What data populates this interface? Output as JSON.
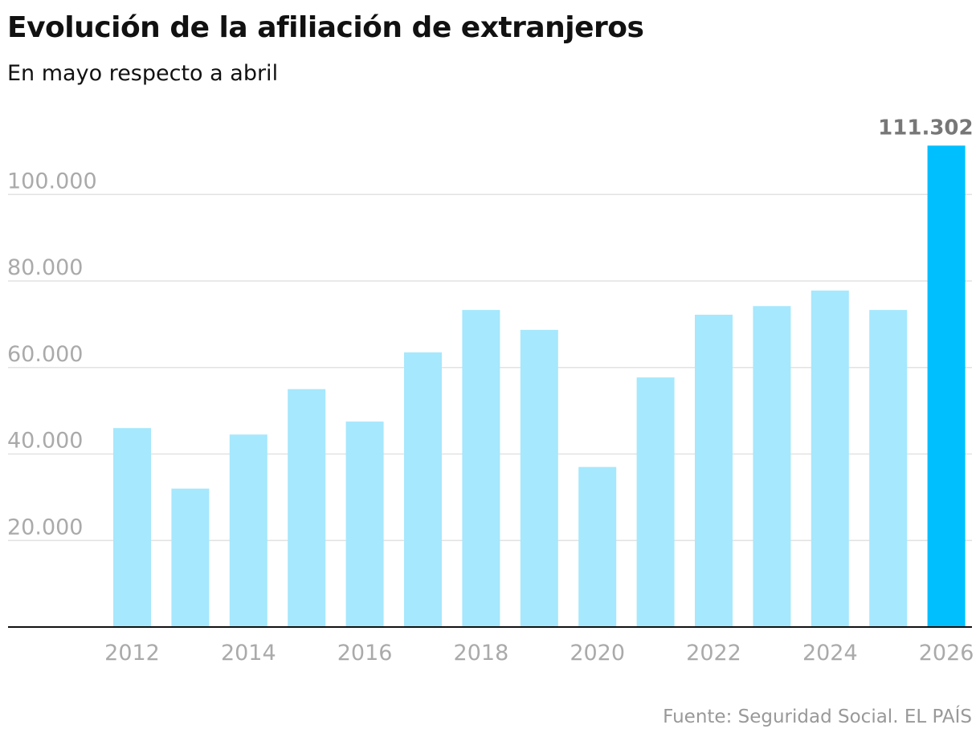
{
  "title": "Evolución de la afiliación de extranjeros",
  "subtitle": "En mayo respecto a abril",
  "source": "Fuente: Seguridad Social. EL PAÍS",
  "colors": {
    "bar": "#a6e8fd",
    "highlight": "#00bfff",
    "grid": "#e2e2e2",
    "axis": "#111111",
    "tick_text": "#aaaaaa",
    "highlight_label": "#777777"
  },
  "chart_data": {
    "type": "bar",
    "categories": [
      "2012",
      "2013",
      "2014",
      "2015",
      "2016",
      "2017",
      "2018",
      "2019",
      "2020",
      "2021",
      "2022",
      "2023",
      "2024",
      "2025",
      "2026"
    ],
    "values": [
      46000,
      32000,
      44500,
      55000,
      47500,
      63500,
      73300,
      68700,
      37000,
      57700,
      72200,
      74200,
      77800,
      73300,
      111302
    ],
    "x_tick_labels": [
      "2012",
      "2014",
      "2016",
      "2018",
      "2020",
      "2022",
      "2024",
      "2026"
    ],
    "y_ticks": [
      20000,
      40000,
      60000,
      80000,
      100000
    ],
    "y_tick_labels": [
      "20.000",
      "40.000",
      "60.000",
      "80.000",
      "100.000"
    ],
    "ylim": [
      0,
      120000
    ],
    "grid": true,
    "highlight_category": "2026",
    "highlight_label": "111.302"
  }
}
